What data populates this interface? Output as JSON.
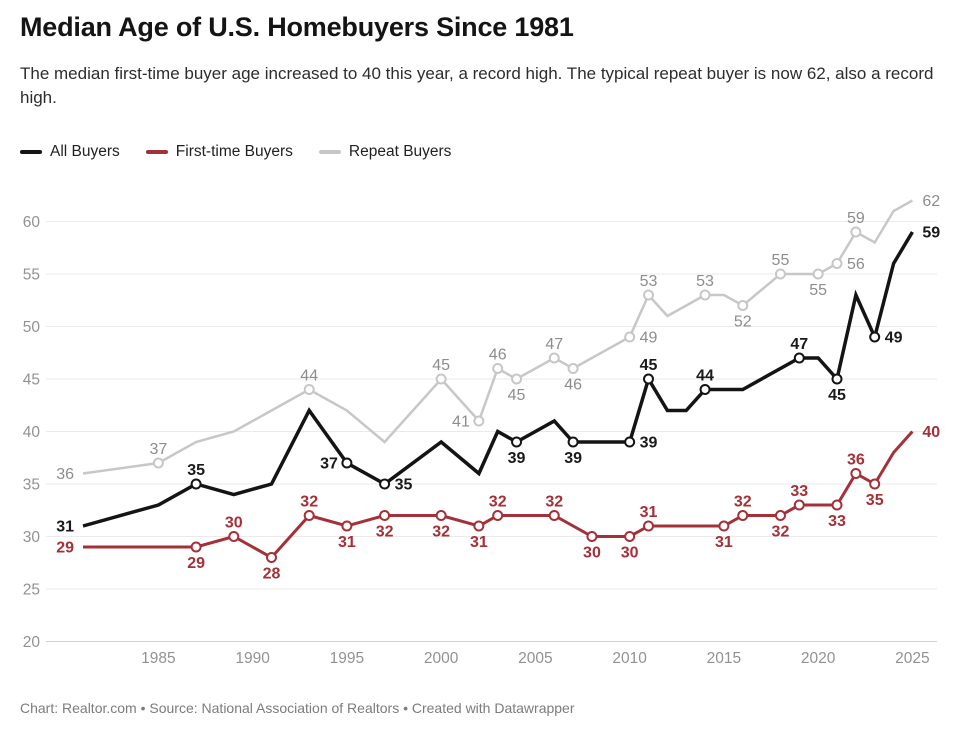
{
  "header": {
    "title": "Median Age of U.S. Homebuyers Since 1981",
    "subtitle": "The median first-time buyer age increased to 40 this year, a record high. The typical repeat buyer is now 62, also a record high."
  },
  "legend": {
    "items": [
      {
        "label": "All Buyers",
        "color": "#141414"
      },
      {
        "label": "First-time Buyers",
        "color": "#a43038"
      },
      {
        "label": "Repeat Buyers",
        "color": "#c7c7c7"
      }
    ]
  },
  "footer": {
    "text": "Chart: Realtor.com • Source: National Association of Realtors • Created with Datawrapper"
  },
  "chart_data": {
    "type": "line",
    "title": "Median Age of U.S. Homebuyers Since 1981",
    "xlabel": "",
    "ylabel": "",
    "x_axis": {
      "range": [
        1981,
        2025
      ],
      "ticks": [
        1985,
        1990,
        1995,
        2000,
        2005,
        2010,
        2015,
        2020,
        2025
      ]
    },
    "y_axis": {
      "range": [
        20,
        62
      ],
      "ticks": [
        20,
        25,
        30,
        35,
        40,
        45,
        50,
        55,
        60
      ]
    },
    "grid": true,
    "legend_position": "top",
    "colors": {
      "gridline": "#eaeaea",
      "baseline": "#d2d2d2",
      "axis_text": "#929292",
      "marker_fill": "#ffffff"
    },
    "point_format": "[year, value, label_position(a=above,b=below,l=left,r=right,null=unlabeled), has_marker_circle]",
    "series": [
      {
        "name": "Repeat Buyers",
        "color": "#c7c7c7",
        "label_color": "#8d8d8d",
        "width": 2.5,
        "bold_labels": false,
        "points": [
          [
            1981,
            36,
            "l",
            0
          ],
          [
            1985,
            37,
            "a",
            1
          ],
          [
            1987,
            39,
            null,
            0
          ],
          [
            1989,
            40,
            null,
            0
          ],
          [
            1991,
            42,
            null,
            0
          ],
          [
            1993,
            44,
            "a",
            1
          ],
          [
            1995,
            42,
            null,
            0
          ],
          [
            1997,
            39,
            null,
            0
          ],
          [
            2000,
            45,
            "a",
            1
          ],
          [
            2002,
            41,
            "l",
            1
          ],
          [
            2003,
            46,
            "a",
            1
          ],
          [
            2004,
            45,
            "b",
            1
          ],
          [
            2006,
            47,
            "a",
            1
          ],
          [
            2007,
            46,
            "b",
            1
          ],
          [
            2010,
            49,
            "r",
            1
          ],
          [
            2011,
            53,
            "a",
            1
          ],
          [
            2012,
            51,
            null,
            0
          ],
          [
            2014,
            53,
            "a",
            1
          ],
          [
            2015,
            53,
            null,
            0
          ],
          [
            2016,
            52,
            "b",
            1
          ],
          [
            2018,
            55,
            "a",
            1
          ],
          [
            2020,
            55,
            "b",
            1
          ],
          [
            2021,
            56,
            "r",
            1
          ],
          [
            2022,
            59,
            "a",
            1
          ],
          [
            2023,
            58,
            null,
            0
          ],
          [
            2024,
            61,
            null,
            0
          ],
          [
            2025,
            62,
            "r",
            0
          ]
        ]
      },
      {
        "name": "All Buyers",
        "color": "#141414",
        "label_color": "#1a1a1a",
        "width": 3.5,
        "bold_labels": true,
        "points": [
          [
            1981,
            31,
            "l",
            0
          ],
          [
            1985,
            33,
            null,
            0
          ],
          [
            1987,
            35,
            "a",
            1
          ],
          [
            1989,
            34,
            null,
            0
          ],
          [
            1991,
            35,
            null,
            0
          ],
          [
            1993,
            42,
            null,
            0
          ],
          [
            1995,
            37,
            "l",
            1
          ],
          [
            1997,
            35,
            "r",
            1
          ],
          [
            2000,
            39,
            null,
            0
          ],
          [
            2002,
            36,
            null,
            0
          ],
          [
            2003,
            40,
            null,
            0
          ],
          [
            2004,
            39,
            "b",
            1
          ],
          [
            2006,
            41,
            null,
            0
          ],
          [
            2007,
            39,
            "b",
            1
          ],
          [
            2010,
            39,
            "r",
            1
          ],
          [
            2011,
            45,
            "a",
            1
          ],
          [
            2012,
            42,
            null,
            0
          ],
          [
            2013,
            42,
            null,
            0
          ],
          [
            2014,
            44,
            "a",
            1
          ],
          [
            2016,
            44,
            null,
            0
          ],
          [
            2019,
            47,
            "a",
            1
          ],
          [
            2020,
            47,
            null,
            0
          ],
          [
            2021,
            45,
            "b",
            1
          ],
          [
            2022,
            53,
            null,
            0
          ],
          [
            2023,
            49,
            "r",
            1
          ],
          [
            2024,
            56,
            null,
            0
          ],
          [
            2025,
            59,
            "r",
            0
          ]
        ]
      },
      {
        "name": "First-time Buyers",
        "color": "#a43038",
        "label_color": "#a43038",
        "width": 3,
        "bold_labels": true,
        "points": [
          [
            1981,
            29,
            "l",
            0
          ],
          [
            1985,
            29,
            null,
            0
          ],
          [
            1987,
            29,
            "b",
            1
          ],
          [
            1989,
            30,
            "a",
            1
          ],
          [
            1991,
            28,
            "b",
            1
          ],
          [
            1993,
            32,
            "a",
            1
          ],
          [
            1995,
            31,
            "b",
            1
          ],
          [
            1997,
            32,
            "b",
            1
          ],
          [
            2000,
            32,
            "b",
            1
          ],
          [
            2002,
            31,
            "b",
            1
          ],
          [
            2003,
            32,
            "a",
            1
          ],
          [
            2006,
            32,
            "a",
            1
          ],
          [
            2008,
            30,
            "b",
            1
          ],
          [
            2010,
            30,
            "b",
            1
          ],
          [
            2011,
            31,
            "a",
            1
          ],
          [
            2015,
            31,
            "b",
            1
          ],
          [
            2016,
            32,
            "a",
            1
          ],
          [
            2018,
            32,
            "b",
            1
          ],
          [
            2019,
            33,
            "a",
            1
          ],
          [
            2021,
            33,
            "b",
            1
          ],
          [
            2022,
            36,
            "a",
            1
          ],
          [
            2023,
            35,
            "b",
            1
          ],
          [
            2024,
            38,
            null,
            0
          ],
          [
            2025,
            40,
            "r",
            0
          ]
        ]
      }
    ]
  }
}
